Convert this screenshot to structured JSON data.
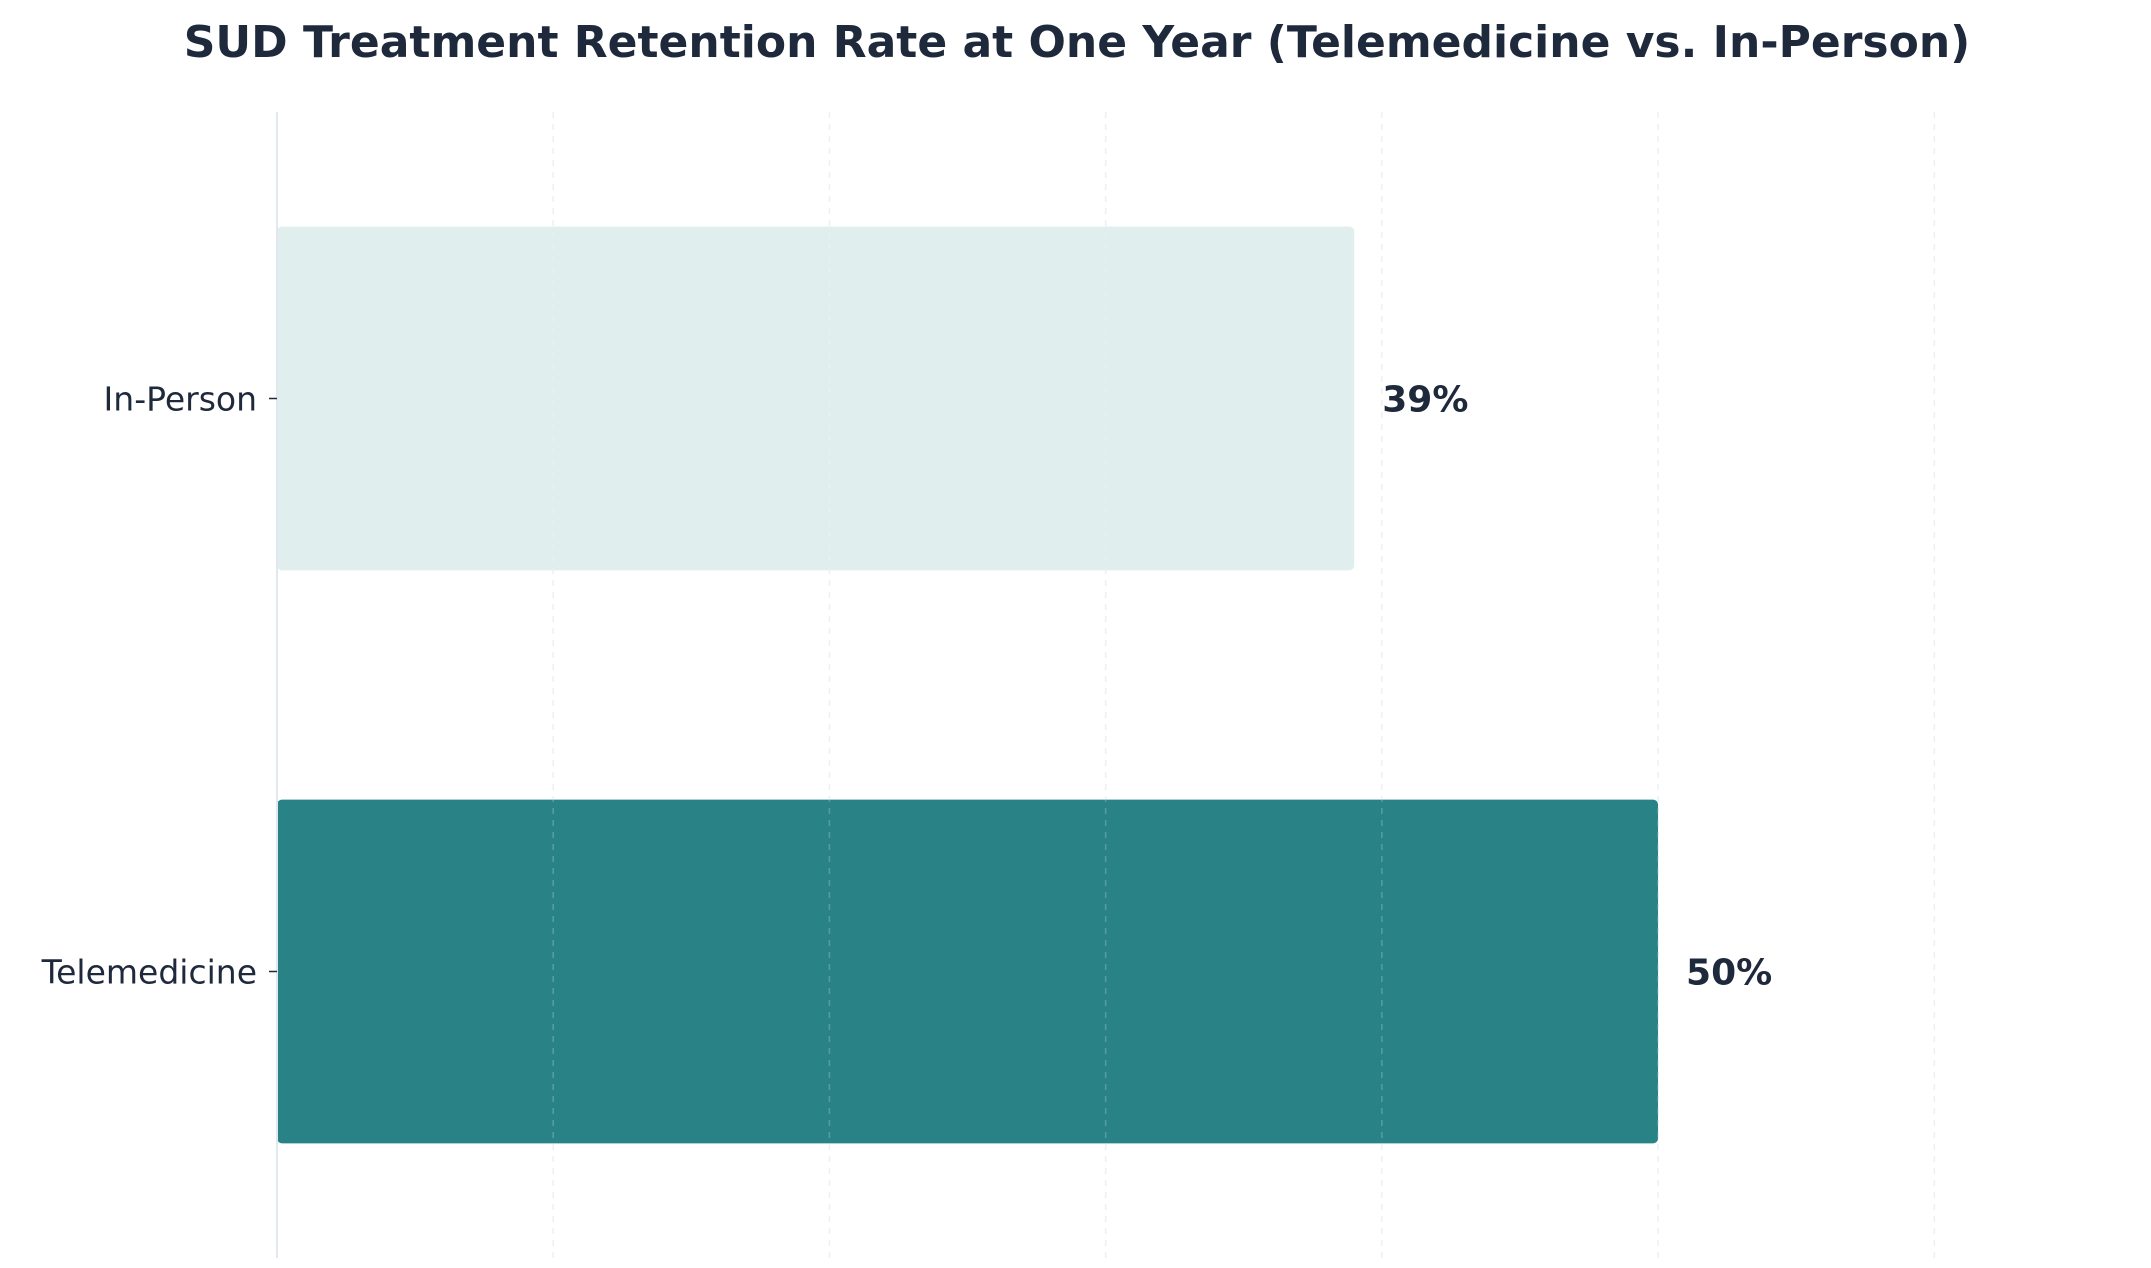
{
  "chart_data": {
    "type": "bar",
    "orientation": "horizontal",
    "title": "SUD Treatment Retention Rate at One Year (Telemedicine vs. In-Person)",
    "xlabel": "",
    "ylabel": "",
    "categories": [
      "In-Person",
      "Telemedicine"
    ],
    "values": [
      39,
      50
    ],
    "data_labels": [
      "39%",
      "50%"
    ],
    "xlim": [
      0,
      66
    ],
    "grid": "vertical-dashed",
    "legend": "none",
    "colors": {
      "In-Person": "#e0eeee",
      "Telemedicine": "#288286",
      "text": "#1e293b",
      "axis": "#e2e8f0",
      "grid": "#cbd5e1"
    }
  }
}
